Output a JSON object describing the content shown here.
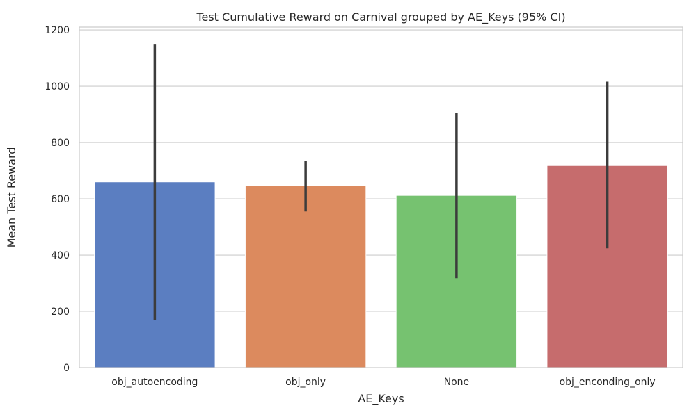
{
  "chart_data": {
    "type": "bar",
    "title": "Test Cumulative Reward on Carnival grouped by AE_Keys (95% CI)",
    "xlabel": "AE_Keys",
    "ylabel": "Mean Test Reward",
    "categories": [
      "obj_autoencoding",
      "obj_only",
      "None",
      "obj_enconding_only"
    ],
    "values": [
      660,
      648,
      612,
      718
    ],
    "ci_low": [
      170,
      555,
      318,
      424
    ],
    "ci_high": [
      1148,
      736,
      906,
      1016
    ],
    "colors": [
      "#5b7ec1",
      "#dc8a5e",
      "#76c270",
      "#c66c6d"
    ],
    "ylim": [
      0,
      1210
    ],
    "yticks": [
      0,
      200,
      400,
      600,
      800,
      1000,
      1200
    ],
    "grid": "y",
    "legend": "none"
  }
}
